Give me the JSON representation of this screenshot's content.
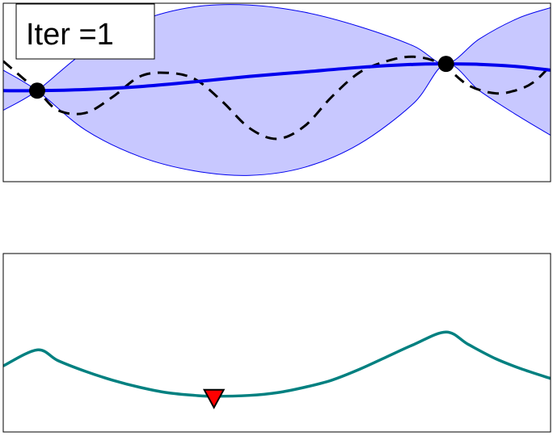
{
  "chart_data": [
    {
      "type": "line",
      "annotation": "Iter =1",
      "x_range": [
        0,
        1
      ],
      "y_range": [
        -1,
        1
      ],
      "grid": false,
      "colors": {
        "mean": "#0000ee",
        "band": "#c8c8ff",
        "band_edge": "#0000ee",
        "objective": "#000000",
        "observations": "#000000"
      },
      "observations": [
        {
          "x": 0.062,
          "y": 0.02
        },
        {
          "x": 0.809,
          "y": 0.32
        }
      ],
      "series": [
        {
          "role": "posterior-mean",
          "x": [
            0.0,
            0.062,
            0.15,
            0.25,
            0.35,
            0.45,
            0.55,
            0.65,
            0.75,
            0.809,
            0.87,
            0.94,
            1.0
          ],
          "y": [
            0.02,
            0.02,
            0.033,
            0.066,
            0.12,
            0.18,
            0.23,
            0.28,
            0.315,
            0.32,
            0.315,
            0.29,
            0.25
          ]
        },
        {
          "role": "confidence-upper",
          "x": [
            0.0,
            0.062,
            0.15,
            0.25,
            0.35,
            0.45,
            0.55,
            0.65,
            0.75,
            0.809,
            0.87,
            0.94,
            1.0
          ],
          "y": [
            -0.2,
            0.02,
            0.46,
            0.8,
            0.96,
            0.98,
            0.9,
            0.74,
            0.52,
            0.32,
            0.6,
            0.83,
            0.95
          ]
        },
        {
          "role": "confidence-lower",
          "x": [
            0.0,
            0.062,
            0.15,
            0.25,
            0.35,
            0.45,
            0.55,
            0.65,
            0.75,
            0.809,
            0.87,
            0.94,
            1.0
          ],
          "y": [
            0.25,
            0.02,
            -0.42,
            -0.72,
            -0.88,
            -0.93,
            -0.84,
            -0.58,
            -0.12,
            0.32,
            0.02,
            -0.26,
            -0.48
          ]
        },
        {
          "role": "objective",
          "x": [
            0.0,
            0.062,
            0.1,
            0.15,
            0.2,
            0.25,
            0.3,
            0.35,
            0.4,
            0.45,
            0.5,
            0.55,
            0.6,
            0.65,
            0.7,
            0.75,
            0.8,
            0.85,
            0.9,
            0.94,
            0.97,
            1.0
          ],
          "y": [
            0.35,
            0.02,
            -0.2,
            -0.23,
            -0.05,
            0.18,
            0.22,
            0.15,
            -0.1,
            -0.4,
            -0.52,
            -0.38,
            -0.05,
            0.22,
            0.35,
            0.4,
            0.32,
            0.08,
            -0.01,
            0.03,
            0.12,
            0.3
          ]
        }
      ]
    },
    {
      "type": "line",
      "x_range": [
        0,
        1
      ],
      "y_range": [
        0,
        1
      ],
      "grid": false,
      "colors": {
        "acquisition": "#008080",
        "marker": "#ff0000"
      },
      "next_point": {
        "x": 0.385,
        "y": 0.2
      },
      "series": [
        {
          "role": "acquisition",
          "x": [
            0.0,
            0.062,
            0.1,
            0.15,
            0.2,
            0.25,
            0.3,
            0.35,
            0.385,
            0.45,
            0.5,
            0.55,
            0.6,
            0.65,
            0.7,
            0.75,
            0.809,
            0.85,
            0.9,
            0.95,
            1.0
          ],
          "y": [
            0.37,
            0.46,
            0.4,
            0.34,
            0.29,
            0.25,
            0.22,
            0.205,
            0.2,
            0.205,
            0.22,
            0.25,
            0.29,
            0.35,
            0.42,
            0.49,
            0.56,
            0.49,
            0.41,
            0.35,
            0.3
          ]
        }
      ]
    }
  ]
}
